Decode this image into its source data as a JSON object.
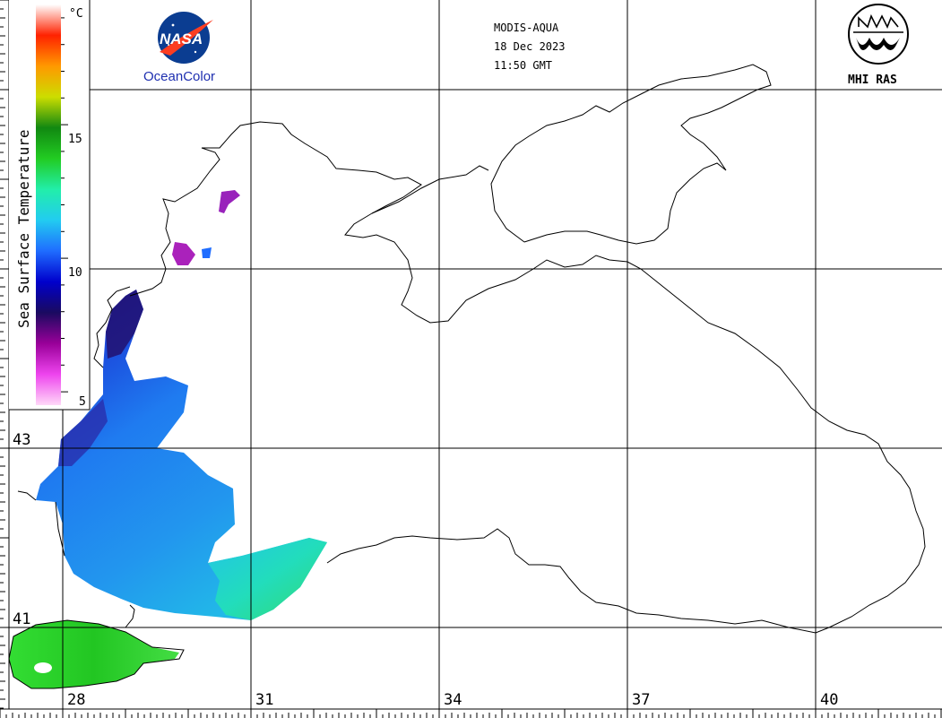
{
  "header": {
    "sensor": "MODIS-AQUA",
    "date": "18 Dec 2023",
    "time": "11:50 GMT"
  },
  "logos": {
    "nasa_text": "NASA",
    "oceancolor_text": "OceanColor",
    "mhi_text": "MHI RAS"
  },
  "colorbar": {
    "title": "Sea Surface Temperature",
    "unit": "°C",
    "min": 4.5,
    "max": 19.5,
    "ticks": [
      "5",
      "10",
      "15"
    ],
    "colors": [
      "#ffd8f8",
      "#ee44ee",
      "#990099",
      "#1a0a60",
      "#0000cc",
      "#1f6dff",
      "#22ccf0",
      "#22eeaa",
      "#22cc22",
      "#118811",
      "#ccdd00",
      "#ff9900",
      "#ff2200",
      "#ffffff"
    ]
  },
  "map": {
    "lon_labels": [
      "28",
      "31",
      "34",
      "37",
      "40"
    ],
    "lat_labels": [
      "43",
      "41"
    ]
  }
}
